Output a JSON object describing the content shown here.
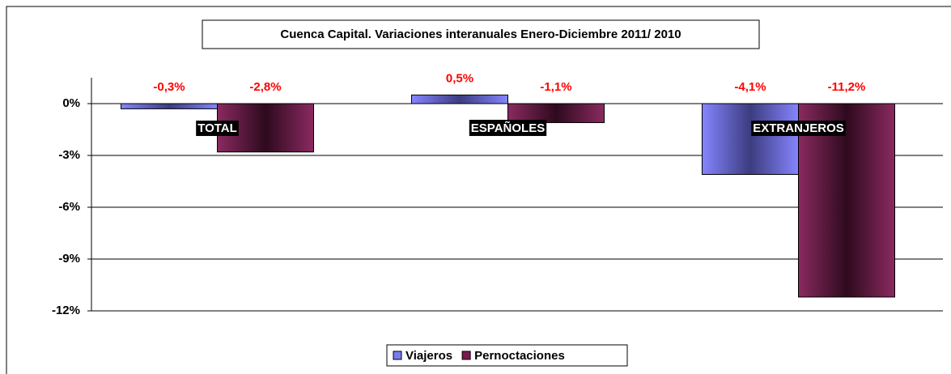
{
  "chart_data": {
    "type": "bar",
    "title": "Cuenca Capital. Variaciones interanuales Enero-Diciembre 2011/ 2010",
    "categories": [
      "TOTAL",
      "ESPAÑOLES",
      "EXTRANJEROS"
    ],
    "series": [
      {
        "name": "Viajeros",
        "color": "#7b7bf0",
        "values": [
          -0.3,
          0.5,
          -4.1
        ],
        "value_labels": [
          "-0,3%",
          "0,5%",
          "-4,1%"
        ]
      },
      {
        "name": "Pernoctaciones",
        "color": "#7a1a4e",
        "values": [
          -2.8,
          -1.1,
          -11.2
        ],
        "value_labels": [
          "-2,8%",
          "-1,1%",
          "-11,2%"
        ]
      }
    ],
    "ylim": [
      -12,
      1.5
    ],
    "yticks": [
      {
        "value": 0,
        "label": "0%"
      },
      {
        "value": -3,
        "label": "-3%"
      },
      {
        "value": -6,
        "label": "-6%"
      },
      {
        "value": -9,
        "label": "-9%"
      },
      {
        "value": -12,
        "label": "-12%"
      }
    ],
    "grid": true,
    "legend": "bottom"
  }
}
